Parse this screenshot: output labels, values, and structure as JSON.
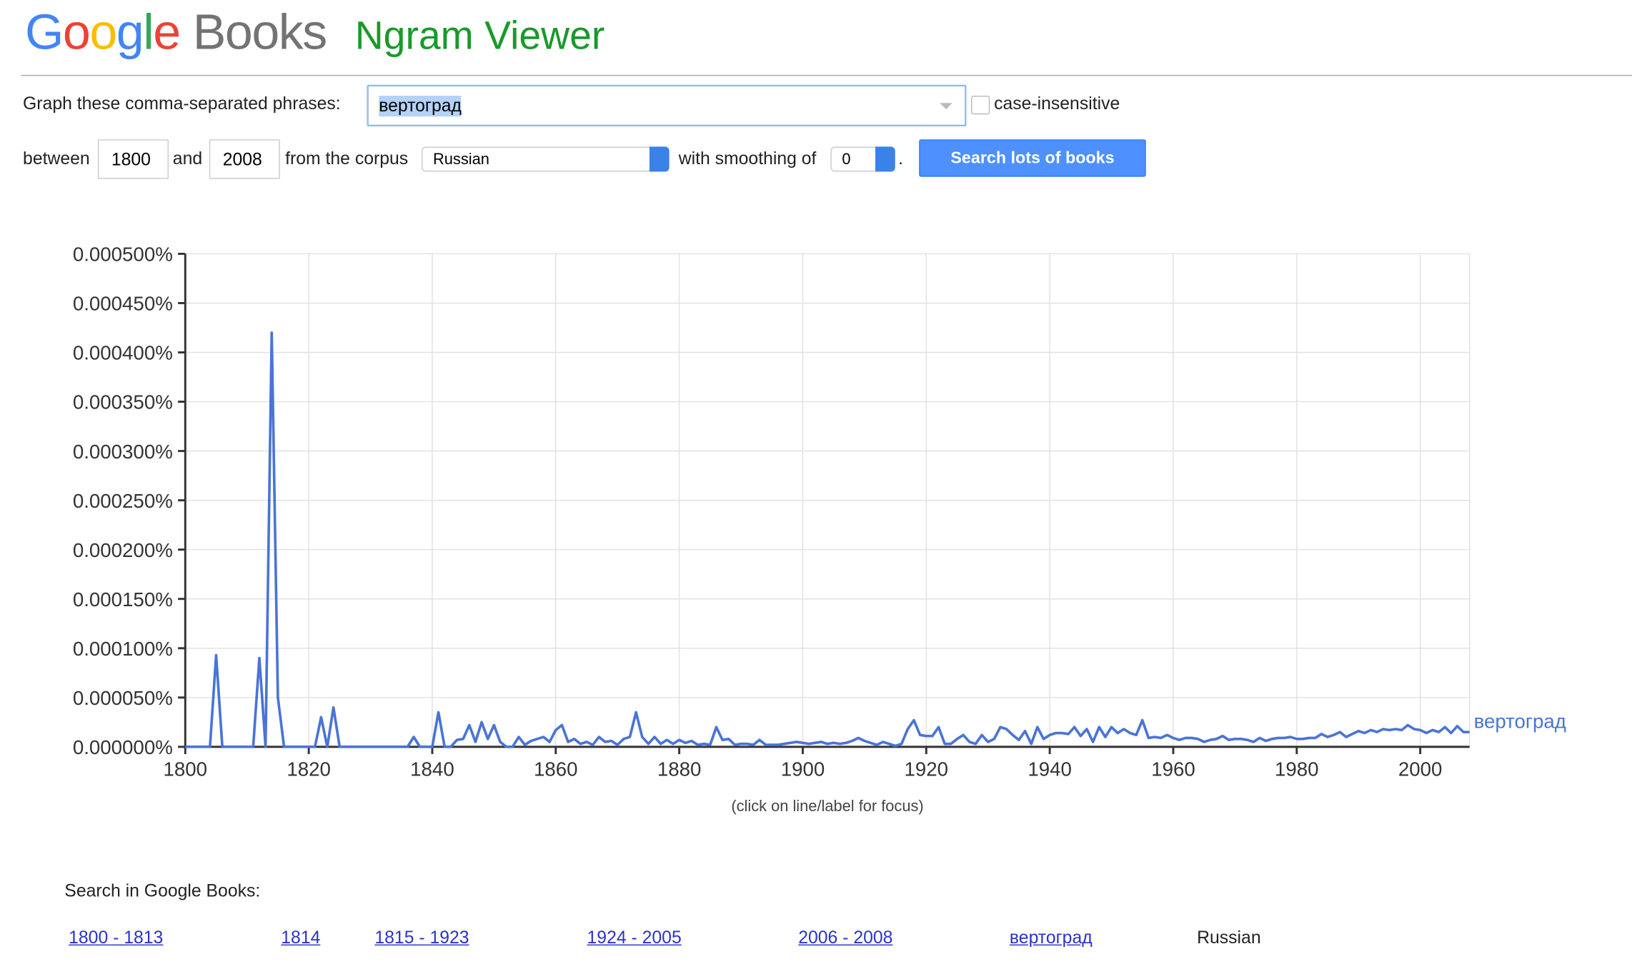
{
  "header": {
    "logo_google": "Google",
    "logo_books": "Books",
    "product": "Ngram Viewer"
  },
  "form": {
    "phrases_label": "Graph these comma-separated phrases:",
    "phrases": "вертоград",
    "case_insensitive": "case-insensitive",
    "between": "between",
    "start_year": "1800",
    "and": "and",
    "end_year": "2008",
    "from_corpus": "from the corpus",
    "corpus": "Russian",
    "with_smoothing": "with smoothing of",
    "smoothing": "0",
    "period": ".",
    "button": "Search lots of books"
  },
  "chart_data": {
    "type": "line",
    "note": "(click on line/label for focus)",
    "x": [
      1800,
      1801,
      1802,
      1803,
      1804,
      1805,
      1806,
      1807,
      1808,
      1809,
      1810,
      1811,
      1812,
      1813,
      1814,
      1815,
      1816,
      1817,
      1818,
      1819,
      1820,
      1821,
      1822,
      1823,
      1824,
      1825,
      1826,
      1827,
      1828,
      1829,
      1830,
      1831,
      1832,
      1833,
      1834,
      1835,
      1836,
      1837,
      1838,
      1839,
      1840,
      1841,
      1842,
      1843,
      1844,
      1845,
      1846,
      1847,
      1848,
      1849,
      1850,
      1851,
      1852,
      1853,
      1854,
      1855,
      1856,
      1857,
      1858,
      1859,
      1860,
      1861,
      1862,
      1863,
      1864,
      1865,
      1866,
      1867,
      1868,
      1869,
      1870,
      1871,
      1872,
      1873,
      1874,
      1875,
      1876,
      1877,
      1878,
      1879,
      1880,
      1881,
      1882,
      1883,
      1884,
      1885,
      1886,
      1887,
      1888,
      1889,
      1890,
      1891,
      1892,
      1893,
      1894,
      1895,
      1896,
      1897,
      1898,
      1899,
      1900,
      1901,
      1902,
      1903,
      1904,
      1905,
      1906,
      1907,
      1908,
      1909,
      1910,
      1911,
      1912,
      1913,
      1914,
      1915,
      1916,
      1917,
      1918,
      1919,
      1920,
      1921,
      1922,
      1923,
      1924,
      1925,
      1926,
      1927,
      1928,
      1929,
      1930,
      1931,
      1932,
      1933,
      1934,
      1935,
      1936,
      1937,
      1938,
      1939,
      1940,
      1941,
      1942,
      1943,
      1944,
      1945,
      1946,
      1947,
      1948,
      1949,
      1950,
      1951,
      1952,
      1953,
      1954,
      1955,
      1956,
      1957,
      1958,
      1959,
      1960,
      1961,
      1962,
      1963,
      1964,
      1965,
      1966,
      1967,
      1968,
      1969,
      1970,
      1971,
      1972,
      1973,
      1974,
      1975,
      1976,
      1977,
      1978,
      1979,
      1980,
      1981,
      1982,
      1983,
      1984,
      1985,
      1986,
      1987,
      1988,
      1989,
      1990,
      1991,
      1992,
      1993,
      1994,
      1995,
      1996,
      1997,
      1998,
      1999,
      2000,
      2001,
      2002,
      2003,
      2004,
      2005,
      2006,
      2007,
      2008
    ],
    "series": [
      {
        "name": "вертоград",
        "color": "#4a74d6",
        "values": [
          0,
          0,
          0,
          0,
          0,
          9.3e-05,
          0,
          0,
          0,
          0,
          0,
          0,
          9e-05,
          0,
          0.00042,
          5e-05,
          0,
          0,
          0,
          0,
          0,
          0,
          3e-05,
          0,
          4e-05,
          0,
          0,
          0,
          0,
          0,
          0,
          0,
          0,
          0,
          0,
          0,
          0,
          1e-05,
          0,
          0,
          0,
          3.5e-05,
          0,
          0,
          7e-06,
          8e-06,
          2.2e-05,
          5e-06,
          2.5e-05,
          8e-06,
          2.2e-05,
          5e-06,
          0,
          0,
          1e-05,
          2e-06,
          6e-06,
          8e-06,
          1e-05,
          5e-06,
          1.7e-05,
          2.2e-05,
          5e-06,
          8e-06,
          3e-06,
          5e-06,
          2e-06,
          1e-05,
          5e-06,
          6e-06,
          2e-06,
          8e-06,
          1e-05,
          3.5e-05,
          1e-05,
          3e-06,
          1e-05,
          3e-06,
          7e-06,
          3e-06,
          7e-06,
          4e-06,
          6e-06,
          2e-06,
          3e-06,
          2e-06,
          2e-05,
          7e-06,
          8e-06,
          2e-06,
          3e-06,
          3e-06,
          2e-06,
          7e-06,
          2e-06,
          2e-06,
          2e-06,
          3e-06,
          4e-06,
          5e-06,
          4e-06,
          3e-06,
          4e-06,
          5e-06,
          3e-06,
          4e-06,
          3e-06,
          4e-06,
          6e-06,
          9e-06,
          6e-06,
          4e-06,
          2e-06,
          5e-06,
          3e-06,
          1e-06,
          3e-06,
          1.8e-05,
          2.7e-05,
          1.2e-05,
          1.1e-05,
          1.1e-05,
          2e-05,
          3e-06,
          3e-06,
          8e-06,
          1.2e-05,
          5e-06,
          3e-06,
          1.2e-05,
          5e-06,
          8e-06,
          2e-05,
          1.8e-05,
          1.2e-05,
          7e-06,
          1.6e-05,
          3e-06,
          2e-05,
          8e-06,
          1.2e-05,
          1.4e-05,
          1.4e-05,
          1.3e-05,
          2e-05,
          1.1e-05,
          1.8e-05,
          5e-06,
          2e-05,
          1e-05,
          2e-05,
          1.4e-05,
          1.8e-05,
          1.4e-05,
          1.2e-05,
          2.7e-05,
          9e-06,
          1e-05,
          9e-06,
          1.2e-05,
          9e-06,
          7e-06,
          9e-06,
          9e-06,
          8e-06,
          5e-06,
          7e-06,
          8e-06,
          1.1e-05,
          7e-06,
          8e-06,
          8e-06,
          7e-06,
          5e-06,
          9e-06,
          6e-06,
          8e-06,
          9e-06,
          9e-06,
          1e-05,
          8e-06,
          8e-06,
          9e-06,
          9e-06,
          1.3e-05,
          1e-05,
          1.2e-05,
          1.5e-05,
          1e-05,
          1.3e-05,
          1.6e-05,
          1.4e-05,
          1.7e-05,
          1.5e-05,
          1.8e-05,
          1.7e-05,
          1.8e-05,
          1.7e-05,
          2.2e-05,
          1.8e-05,
          1.7e-05,
          1.4e-05,
          1.7e-05,
          1.5e-05,
          2e-05,
          1.4e-05,
          2.1e-05,
          1.5e-05,
          1.5e-05
        ]
      }
    ],
    "xlim": [
      1800,
      2008
    ],
    "xticks": [
      1800,
      1820,
      1840,
      1860,
      1880,
      1900,
      1920,
      1940,
      1960,
      1980,
      2000
    ],
    "ylim": [
      0,
      0.0005
    ],
    "yticks": [
      {
        "value": 0,
        "label": "0.000000%"
      },
      {
        "value": 5e-05,
        "label": "0.000050%"
      },
      {
        "value": 0.0001,
        "label": "0.000100%"
      },
      {
        "value": 0.00015,
        "label": "0.000150%"
      },
      {
        "value": 0.0002,
        "label": "0.000200%"
      },
      {
        "value": 0.00025,
        "label": "0.000250%"
      },
      {
        "value": 0.0003,
        "label": "0.000300%"
      },
      {
        "value": 0.00035,
        "label": "0.000350%"
      },
      {
        "value": 0.0004,
        "label": "0.000400%"
      },
      {
        "value": 0.00045,
        "label": "0.000450%"
      },
      {
        "value": 0.0005,
        "label": "0.000500%"
      }
    ],
    "grid": true
  },
  "footer": {
    "search_label": "Search in Google Books:",
    "links": [
      "1800 - 1813",
      "1814",
      "1815 - 1923",
      "1924 - 2005",
      "2006 - 2008",
      "вертоград"
    ],
    "corpus": "Russian"
  }
}
